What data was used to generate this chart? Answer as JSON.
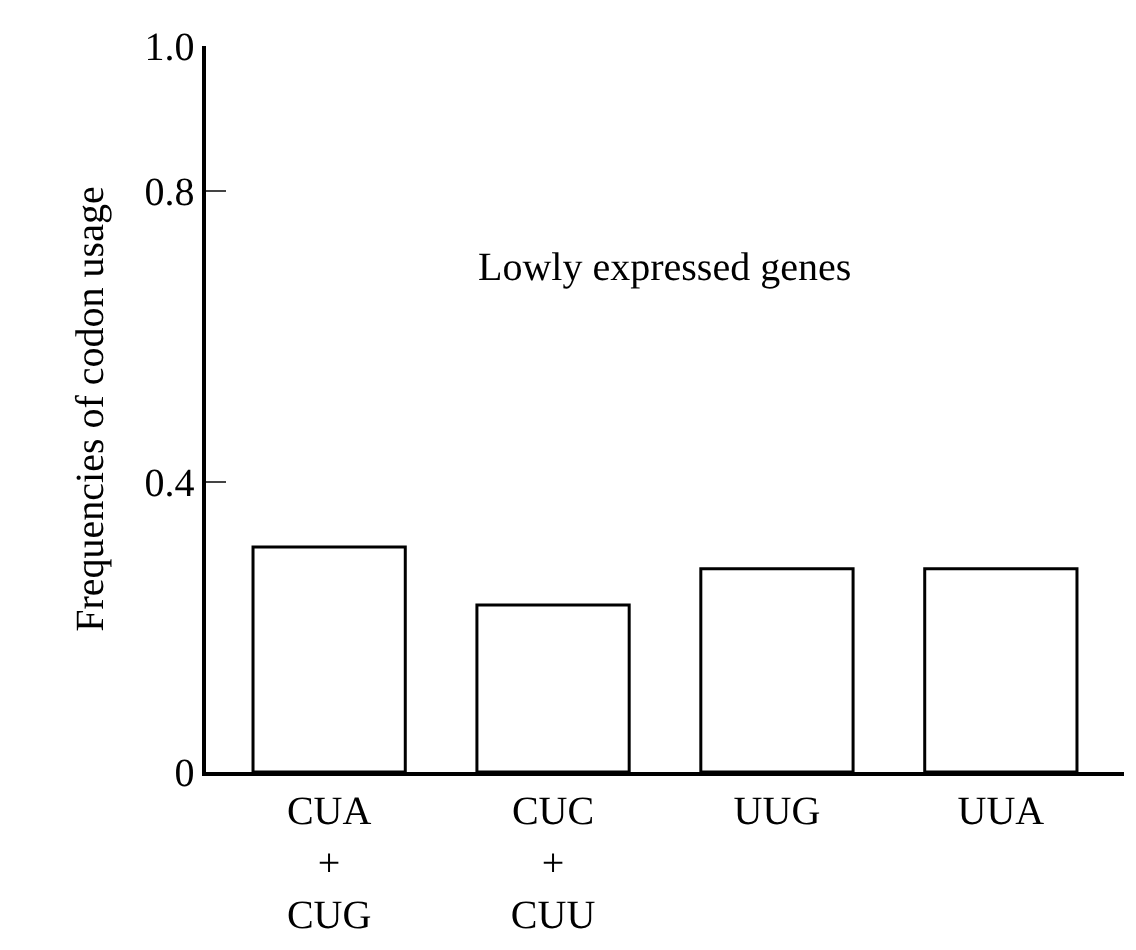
{
  "chart_data": {
    "type": "bar",
    "categories": [
      "CUA\n+\nCUG",
      "CUC\n+\nCUU",
      "UUG",
      "UUA"
    ],
    "series": [
      {
        "color": "#ffffff",
        "values": [
          0.31,
          0.23,
          0.28,
          0.28
        ]
      }
    ],
    "ylabel": "Frequencies of codon usage",
    "annotations": [
      "Lowly expressed genes"
    ],
    "ylim": [
      0,
      1.0
    ],
    "yticks": [
      0,
      {
        "value": 0.4,
        "label": "0.4"
      },
      {
        "value": 0.8,
        "label": "0.8"
      },
      {
        "value": 1.0,
        "label": "1.0"
      }
    ]
  }
}
